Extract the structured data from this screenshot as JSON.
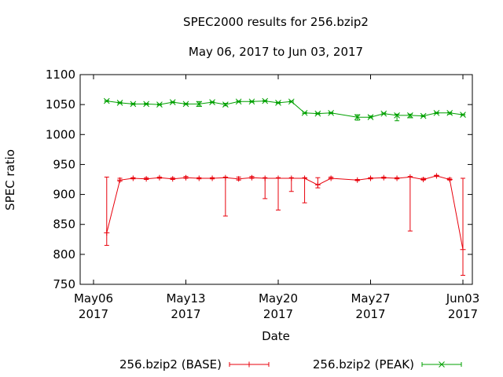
{
  "chart_data": {
    "type": "line",
    "title": "SPEC2000 results for 256.bzip2",
    "subtitle": "May 06, 2017 to Jun 03, 2017",
    "xlabel": "Date",
    "ylabel": "SPEC ratio",
    "ylim": [
      750,
      1100
    ],
    "yticks": [
      750,
      800,
      850,
      900,
      950,
      1000,
      1050,
      1100
    ],
    "xlim": [
      "2017-05-06",
      "2017-06-03"
    ],
    "xticks": [
      {
        "date": "2017-05-06",
        "line1": "May06",
        "line2": "2017"
      },
      {
        "date": "2017-05-13",
        "line1": "May13",
        "line2": "2017"
      },
      {
        "date": "2017-05-20",
        "line1": "May20",
        "line2": "2017"
      },
      {
        "date": "2017-05-27",
        "line1": "May27",
        "line2": "2017"
      },
      {
        "date": "2017-06-03",
        "line1": "Jun03",
        "line2": "2017"
      }
    ],
    "legend_position": "bottom",
    "grid": false,
    "series": [
      {
        "name": "256.bzip2 (BASE)",
        "color": "#e8000b",
        "marker": "plus",
        "points": [
          {
            "x": "2017-05-07",
            "y": 836,
            "low": 815,
            "high": 929
          },
          {
            "x": "2017-05-08",
            "y": 924,
            "low": 922,
            "high": 927
          },
          {
            "x": "2017-05-09",
            "y": 927,
            "low": 926,
            "high": 928
          },
          {
            "x": "2017-05-10",
            "y": 926,
            "low": 925,
            "high": 928
          },
          {
            "x": "2017-05-11",
            "y": 928,
            "low": 927,
            "high": 929
          },
          {
            "x": "2017-05-12",
            "y": 926,
            "low": 925,
            "high": 928
          },
          {
            "x": "2017-05-13",
            "y": 928,
            "low": 927,
            "high": 930
          },
          {
            "x": "2017-05-14",
            "y": 927,
            "low": 926,
            "high": 928
          },
          {
            "x": "2017-05-15",
            "y": 927,
            "low": 926,
            "high": 928
          },
          {
            "x": "2017-05-16",
            "y": 928,
            "low": 864,
            "high": 929
          },
          {
            "x": "2017-05-17",
            "y": 926,
            "low": 924,
            "high": 929
          },
          {
            "x": "2017-05-18",
            "y": 928,
            "low": 927,
            "high": 930
          },
          {
            "x": "2017-05-19",
            "y": 927,
            "low": 893,
            "high": 928
          },
          {
            "x": "2017-05-20",
            "y": 927,
            "low": 874,
            "high": 928
          },
          {
            "x": "2017-05-21",
            "y": 927,
            "low": 905,
            "high": 928
          },
          {
            "x": "2017-05-22",
            "y": 927,
            "low": 886,
            "high": 928
          },
          {
            "x": "2017-05-23",
            "y": 916,
            "low": 911,
            "high": 928
          },
          {
            "x": "2017-05-24",
            "y": 927,
            "low": 926,
            "high": 929
          },
          {
            "x": "2017-05-26",
            "y": 924,
            "low": 923,
            "high": 925
          },
          {
            "x": "2017-05-27",
            "y": 927,
            "low": 926,
            "high": 928
          },
          {
            "x": "2017-05-28",
            "y": 928,
            "low": 927,
            "high": 929
          },
          {
            "x": "2017-05-29",
            "y": 927,
            "low": 926,
            "high": 928
          },
          {
            "x": "2017-05-30",
            "y": 929,
            "low": 839,
            "high": 930
          },
          {
            "x": "2017-05-31",
            "y": 925,
            "low": 924,
            "high": 927
          },
          {
            "x": "2017-06-01",
            "y": 931,
            "low": 930,
            "high": 932
          },
          {
            "x": "2017-06-02",
            "y": 925,
            "low": 924,
            "high": 927
          },
          {
            "x": "2017-06-03",
            "y": 808,
            "low": 765,
            "high": 927
          }
        ]
      },
      {
        "name": "256.bzip2 (PEAK)",
        "color": "#00a000",
        "marker": "cross",
        "points": [
          {
            "x": "2017-05-07",
            "y": 1056,
            "low": 1055,
            "high": 1057
          },
          {
            "x": "2017-05-08",
            "y": 1053,
            "low": 1052,
            "high": 1054
          },
          {
            "x": "2017-05-09",
            "y": 1051,
            "low": 1050,
            "high": 1052
          },
          {
            "x": "2017-05-10",
            "y": 1051,
            "low": 1050,
            "high": 1052
          },
          {
            "x": "2017-05-11",
            "y": 1050,
            "low": 1049,
            "high": 1051
          },
          {
            "x": "2017-05-12",
            "y": 1054,
            "low": 1053,
            "high": 1055
          },
          {
            "x": "2017-05-13",
            "y": 1051,
            "low": 1050,
            "high": 1052
          },
          {
            "x": "2017-05-14",
            "y": 1051,
            "low": 1047,
            "high": 1055
          },
          {
            "x": "2017-05-15",
            "y": 1054,
            "low": 1053,
            "high": 1055
          },
          {
            "x": "2017-05-16",
            "y": 1050,
            "low": 1048,
            "high": 1052
          },
          {
            "x": "2017-05-17",
            "y": 1055,
            "low": 1054,
            "high": 1056
          },
          {
            "x": "2017-05-18",
            "y": 1055,
            "low": 1054,
            "high": 1056
          },
          {
            "x": "2017-05-19",
            "y": 1056,
            "low": 1055,
            "high": 1057
          },
          {
            "x": "2017-05-20",
            "y": 1053,
            "low": 1052,
            "high": 1054
          },
          {
            "x": "2017-05-21",
            "y": 1055,
            "low": 1054,
            "high": 1056
          },
          {
            "x": "2017-05-22",
            "y": 1036,
            "low": 1035,
            "high": 1037
          },
          {
            "x": "2017-05-23",
            "y": 1035,
            "low": 1034,
            "high": 1036
          },
          {
            "x": "2017-05-24",
            "y": 1036,
            "low": 1035,
            "high": 1037
          },
          {
            "x": "2017-05-26",
            "y": 1029,
            "low": 1024,
            "high": 1033
          },
          {
            "x": "2017-05-27",
            "y": 1029,
            "low": 1028,
            "high": 1031
          },
          {
            "x": "2017-05-28",
            "y": 1035,
            "low": 1034,
            "high": 1036
          },
          {
            "x": "2017-05-29",
            "y": 1032,
            "low": 1023,
            "high": 1034
          },
          {
            "x": "2017-05-30",
            "y": 1032,
            "low": 1028,
            "high": 1034
          },
          {
            "x": "2017-05-31",
            "y": 1031,
            "low": 1030,
            "high": 1032
          },
          {
            "x": "2017-06-01",
            "y": 1036,
            "low": 1035,
            "high": 1037
          },
          {
            "x": "2017-06-02",
            "y": 1036,
            "low": 1034,
            "high": 1037
          },
          {
            "x": "2017-06-03",
            "y": 1033,
            "low": 1032,
            "high": 1034
          }
        ]
      }
    ]
  }
}
